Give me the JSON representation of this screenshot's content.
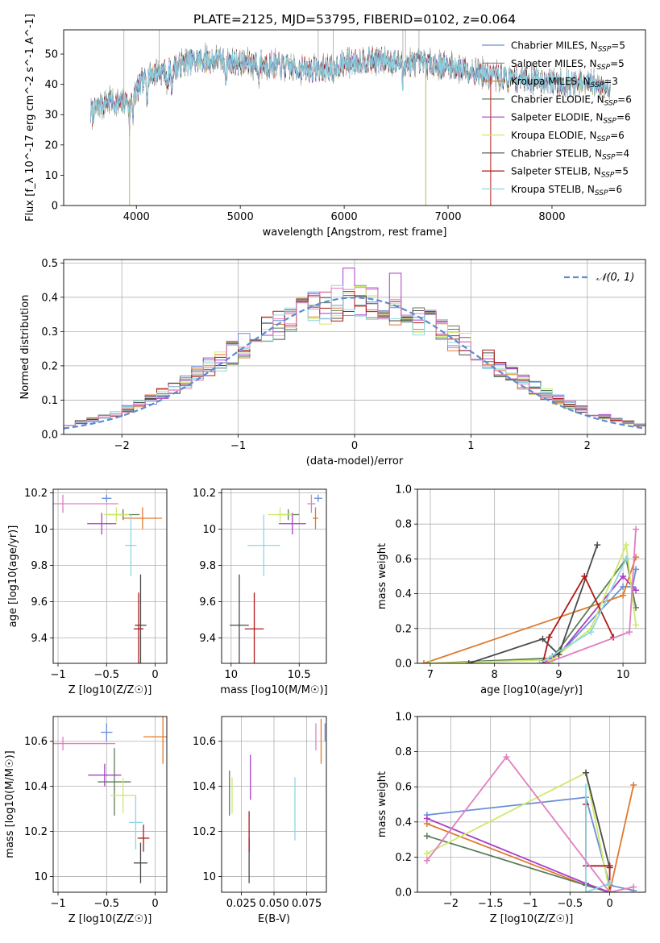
{
  "title": "PLATE=2125, MJD=53795, FIBERID=0102, z=0.064",
  "colors": {
    "c1": "#6a8fd8",
    "c2": "#e07a2e",
    "c3": "#5a7d5a",
    "c4": "#a63fc8",
    "c5": "#cfe96a",
    "c6": "#4a4a4a",
    "c7": "#b01818",
    "c8": "#8fd6e0",
    "c9": "#e07fc0",
    "gauss": "#5b8bd6"
  },
  "chart_data": [
    {
      "type": "line",
      "title": "PLATE=2125, MJD=53795, FIBERID=0102, z=0.064",
      "xlabel": "wavelength [Angstrom, rest frame]",
      "ylabel": "Flux [f_λ 10^-17 erg cm^-2 s^-1 A^-1]",
      "xlim": [
        3300,
        8900
      ],
      "ylim": [
        0,
        58
      ],
      "xticks": [
        4000,
        5000,
        6000,
        7000,
        8000
      ],
      "yticks": [
        0,
        10,
        20,
        30,
        40,
        50
      ],
      "grid": false,
      "legend_position": "top-right",
      "legend": [
        {
          "label": "Chabrier MILES, N",
          "sub": "SSP",
          "suffix": "=5",
          "color": "#6a8fd8"
        },
        {
          "label": "Salpeter MILES, N",
          "sub": "SSP",
          "suffix": "=5",
          "color": "#8a8a8a"
        },
        {
          "label": "Kroupa MILES, N",
          "sub": "SSP",
          "suffix": "=3",
          "color": "#e07a2e"
        },
        {
          "label": "Chabrier ELODIE, N",
          "sub": "SSP",
          "suffix": "=6",
          "color": "#5a7d5a"
        },
        {
          "label": "Salpeter ELODIE, N",
          "sub": "SSP",
          "suffix": "=6",
          "color": "#a63fc8"
        },
        {
          "label": "Kroupa ELODIE, N",
          "sub": "SSP",
          "suffix": "=6",
          "color": "#cfe96a"
        },
        {
          "label": "Chabrier STELIB, N",
          "sub": "SSP",
          "suffix": "=4",
          "color": "#4a4a4a"
        },
        {
          "label": "Salpeter STELIB, N",
          "sub": "SSP",
          "suffix": "=5",
          "color": "#b01818"
        },
        {
          "label": "Kroupa STELIB, N",
          "sub": "SSP",
          "suffix": "=6",
          "color": "#8fd6e0"
        }
      ],
      "continuum": [
        [
          3560,
          30
        ],
        [
          3650,
          33
        ],
        [
          3750,
          35
        ],
        [
          3850,
          33
        ],
        [
          3950,
          36
        ],
        [
          4050,
          40
        ],
        [
          4150,
          44
        ],
        [
          4300,
          44
        ],
        [
          4450,
          47
        ],
        [
          4600,
          48
        ],
        [
          4800,
          48
        ],
        [
          5000,
          47
        ],
        [
          5200,
          47
        ],
        [
          5400,
          46
        ],
        [
          5600,
          45
        ],
        [
          5800,
          45
        ],
        [
          6000,
          47
        ],
        [
          6200,
          48
        ],
        [
          6400,
          48
        ],
        [
          6560,
          47
        ],
        [
          6800,
          47
        ],
        [
          7000,
          46
        ],
        [
          7200,
          45
        ],
        [
          7400,
          43
        ],
        [
          7600,
          42
        ],
        [
          7800,
          42
        ],
        [
          8000,
          41
        ],
        [
          8200,
          40
        ],
        [
          8400,
          40
        ],
        [
          8560,
          39
        ]
      ],
      "spikes_up": [
        3880,
        4220,
        5750,
        5895,
        6565,
        6590,
        6720
      ],
      "spikes_down": [
        3934,
        6785,
        7410
      ]
    },
    {
      "type": "bar",
      "title": "",
      "xlabel": "(data-model)/error",
      "ylabel": "Normed distribution",
      "xlim": [
        -2.5,
        2.5
      ],
      "ylim": [
        0,
        0.51
      ],
      "xticks": [
        -2,
        -1,
        0,
        1,
        2
      ],
      "yticks": [
        0.0,
        0.1,
        0.2,
        0.3,
        0.4,
        0.5
      ],
      "grid": true,
      "legend_position": "top-right",
      "legend_label": "𝒩(0, 1)",
      "bin_width": 0.1,
      "x_start": -2.5,
      "n_series": 9
    },
    {
      "type": "scatter",
      "xlabel": "Z [log10(Z/Z☉)]",
      "ylabel": "age  [log10(age/yr)]",
      "xlim": [
        -1.05,
        0.12
      ],
      "ylim": [
        9.26,
        10.22
      ],
      "xticks": [
        -1.0,
        -0.5,
        0.0
      ],
      "yticks": [
        9.4,
        9.6,
        9.8,
        10.0,
        10.2
      ],
      "grid": true,
      "points": [
        {
          "color": "#6a8fd8",
          "x": -0.5,
          "y": 10.17,
          "xerr": 0.05,
          "yerr": 0.02
        },
        {
          "color": "#e07a2e",
          "x": -0.13,
          "y": 10.06,
          "xerr": 0.2,
          "yerr": 0.06
        },
        {
          "color": "#5a7d5a",
          "x": -0.33,
          "y": 10.08,
          "xerr": 0.17,
          "yerr": 0.03
        },
        {
          "color": "#a63fc8",
          "x": -0.55,
          "y": 10.03,
          "xerr": 0.15,
          "yerr": 0.06
        },
        {
          "color": "#cfe96a",
          "x": -0.4,
          "y": 10.08,
          "xerr": 0.13,
          "yerr": 0.04
        },
        {
          "color": "#4a4a4a",
          "x": -0.15,
          "y": 9.47,
          "xerr": 0.06,
          "yerr": 0.28
        },
        {
          "color": "#b01818",
          "x": -0.17,
          "y": 9.45,
          "xerr": 0.05,
          "yerr": 0.2
        },
        {
          "color": "#8fd6e0",
          "x": -0.25,
          "y": 9.91,
          "xerr": 0.06,
          "yerr": 0.17
        },
        {
          "color": "#e07fc0",
          "x": -0.95,
          "y": 10.14,
          "xerr": 0.57,
          "yerr": 0.05
        }
      ]
    },
    {
      "type": "scatter",
      "xlabel": "mass [log10(M/M☉)]",
      "ylabel": "",
      "xlim": [
        9.93,
        10.7
      ],
      "ylim": [
        9.26,
        10.22
      ],
      "xticks": [
        10.0,
        10.5
      ],
      "yticks": [
        9.4,
        9.6,
        9.8,
        10.0,
        10.2
      ],
      "grid": true,
      "points": [
        {
          "color": "#6a8fd8",
          "x": 10.64,
          "y": 10.17,
          "xerr": 0.03,
          "yerr": 0.02
        },
        {
          "color": "#e07a2e",
          "x": 10.62,
          "y": 10.06,
          "xerr": 0.02,
          "yerr": 0.06
        },
        {
          "color": "#5a7d5a",
          "x": 10.42,
          "y": 10.08,
          "xerr": 0.08,
          "yerr": 0.03
        },
        {
          "color": "#a63fc8",
          "x": 10.45,
          "y": 10.03,
          "xerr": 0.1,
          "yerr": 0.06
        },
        {
          "color": "#cfe96a",
          "x": 10.36,
          "y": 10.08,
          "xerr": 0.09,
          "yerr": 0.04
        },
        {
          "color": "#4a4a4a",
          "x": 10.06,
          "y": 9.47,
          "xerr": 0.07,
          "yerr": 0.28
        },
        {
          "color": "#b01818",
          "x": 10.17,
          "y": 9.45,
          "xerr": 0.07,
          "yerr": 0.2
        },
        {
          "color": "#8fd6e0",
          "x": 10.24,
          "y": 9.91,
          "xerr": 0.12,
          "yerr": 0.17
        },
        {
          "color": "#e07fc0",
          "x": 10.59,
          "y": 10.14,
          "xerr": 0.03,
          "yerr": 0.05
        }
      ]
    },
    {
      "type": "line",
      "xlabel": "age  [log10(age/yr)]",
      "ylabel": "mass weight",
      "xlim": [
        6.8,
        10.35
      ],
      "ylim": [
        0,
        1.0
      ],
      "xticks": [
        7,
        8,
        9,
        10
      ],
      "yticks": [
        0.0,
        0.2,
        0.4,
        0.6,
        0.8,
        1.0
      ],
      "grid": true,
      "series": [
        {
          "color": "#6a8fd8",
          "points": [
            [
              8.9,
              0.04
            ],
            [
              9.0,
              0.05
            ],
            [
              10.0,
              0.44
            ],
            [
              10.15,
              0.44
            ],
            [
              10.2,
              0.54
            ]
          ]
        },
        {
          "color": "#e07a2e",
          "points": [
            [
              6.9,
              0.0
            ],
            [
              10.0,
              0.39
            ],
            [
              10.2,
              0.61
            ]
          ]
        },
        {
          "color": "#5a7d5a",
          "points": [
            [
              7.0,
              0.0
            ],
            [
              8.9,
              0.03
            ],
            [
              10.05,
              0.6
            ],
            [
              10.2,
              0.32
            ]
          ]
        },
        {
          "color": "#a63fc8",
          "points": [
            [
              8.75,
              0.0
            ],
            [
              9.0,
              0.05
            ],
            [
              10.0,
              0.5
            ],
            [
              10.2,
              0.42
            ]
          ]
        },
        {
          "color": "#cfe96a",
          "points": [
            [
              7.0,
              0.0
            ],
            [
              8.9,
              0.02
            ],
            [
              9.5,
              0.2
            ],
            [
              10.05,
              0.68
            ],
            [
              10.2,
              0.22
            ]
          ]
        },
        {
          "color": "#4a4a4a",
          "points": [
            [
              7.6,
              0.0
            ],
            [
              8.75,
              0.14
            ],
            [
              9.0,
              0.05
            ],
            [
              9.6,
              0.68
            ]
          ]
        },
        {
          "color": "#b01818",
          "points": [
            [
              8.75,
              0.0
            ],
            [
              8.85,
              0.15
            ],
            [
              9.4,
              0.5
            ],
            [
              9.85,
              0.15
            ]
          ]
        },
        {
          "color": "#8fd6e0",
          "points": [
            [
              8.7,
              0.0
            ],
            [
              9.5,
              0.18
            ],
            [
              10.05,
              0.6
            ]
          ]
        },
        {
          "color": "#e07fc0",
          "points": [
            [
              8.8,
              0.0
            ],
            [
              10.1,
              0.18
            ],
            [
              10.2,
              0.77
            ]
          ]
        }
      ]
    },
    {
      "type": "scatter",
      "xlabel": "Z [log10(Z/Z☉)]",
      "ylabel": "mass [log10(M/M☉)]",
      "xlim": [
        -1.05,
        0.12
      ],
      "ylim": [
        9.93,
        10.71
      ],
      "xticks": [
        -1.0,
        -0.5,
        0.0
      ],
      "yticks": [
        10.0,
        10.2,
        10.4,
        10.6
      ],
      "grid": true,
      "points": [
        {
          "color": "#6a8fd8",
          "x": -0.5,
          "y": 10.64,
          "xerr": 0.06,
          "yerr": 0.04
        },
        {
          "color": "#e07a2e",
          "x": 0.08,
          "y": 10.62,
          "xerr": 0.2,
          "yerr": 0.12
        },
        {
          "color": "#5a7d5a",
          "x": -0.42,
          "y": 10.42,
          "xerr": 0.17,
          "yerr": 0.15
        },
        {
          "color": "#a63fc8",
          "x": -0.52,
          "y": 10.45,
          "xerr": 0.17,
          "yerr": 0.05
        },
        {
          "color": "#cfe96a",
          "x": -0.33,
          "y": 10.36,
          "xerr": 0.13,
          "yerr": 0.08
        },
        {
          "color": "#4a4a4a",
          "x": -0.15,
          "y": 10.06,
          "xerr": 0.07,
          "yerr": 0.09
        },
        {
          "color": "#b01818",
          "x": -0.12,
          "y": 10.17,
          "xerr": 0.06,
          "yerr": 0.06
        },
        {
          "color": "#8fd6e0",
          "x": -0.2,
          "y": 10.24,
          "xerr": 0.07,
          "yerr": 0.12
        },
        {
          "color": "#e07fc0",
          "x": -0.95,
          "y": 10.59,
          "xerr": 0.54,
          "yerr": 0.03
        }
      ]
    },
    {
      "type": "scatter",
      "xlabel": "E(B-V)",
      "ylabel": "",
      "xlim": [
        0.01,
        0.09
      ],
      "ylim": [
        9.93,
        10.71
      ],
      "xticks": [
        0.025,
        0.05,
        0.075
      ],
      "xtick_labels": [
        "0.025",
        "0.050",
        "0.075"
      ],
      "yticks": [
        10.0,
        10.2,
        10.4,
        10.6
      ],
      "grid": true,
      "points": [
        {
          "color": "#6a8fd8",
          "x": 0.089,
          "y": 10.64,
          "xerr": 0.0,
          "yerr": 0.04
        },
        {
          "color": "#e07a2e",
          "x": 0.086,
          "y": 10.6,
          "xerr": 0.0,
          "yerr": 0.1
        },
        {
          "color": "#5a7d5a",
          "x": 0.016,
          "y": 10.37,
          "xerr": 0.0,
          "yerr": 0.1
        },
        {
          "color": "#a63fc8",
          "x": 0.032,
          "y": 10.44,
          "xerr": 0.0,
          "yerr": 0.1
        },
        {
          "color": "#cfe96a",
          "x": 0.018,
          "y": 10.36,
          "xerr": 0.0,
          "yerr": 0.08
        },
        {
          "color": "#4a4a4a",
          "x": 0.031,
          "y": 10.07,
          "xerr": 0.0,
          "yerr": 0.1
        },
        {
          "color": "#b01818",
          "x": 0.031,
          "y": 10.2,
          "xerr": 0.0,
          "yerr": 0.09
        },
        {
          "color": "#8fd6e0",
          "x": 0.066,
          "y": 10.3,
          "xerr": 0.0,
          "yerr": 0.14
        },
        {
          "color": "#e07fc0",
          "x": 0.082,
          "y": 10.62,
          "xerr": 0.0,
          "yerr": 0.06
        }
      ]
    },
    {
      "type": "line",
      "xlabel": "Z [log10(Z/Z☉)]",
      "ylabel": "mass weight",
      "xlim": [
        -2.42,
        0.45
      ],
      "ylim": [
        0,
        1.0
      ],
      "xticks": [
        -2.0,
        -1.5,
        -1.0,
        -0.5,
        0.0
      ],
      "yticks": [
        0.0,
        0.2,
        0.4,
        0.6,
        0.8,
        1.0
      ],
      "grid": true,
      "series": [
        {
          "color": "#6a8fd8",
          "points": [
            [
              -2.3,
              0.44
            ],
            [
              -0.3,
              0.54
            ],
            [
              0.0,
              0.04
            ],
            [
              0.3,
              0.01
            ]
          ]
        },
        {
          "color": "#e07a2e",
          "points": [
            [
              -2.3,
              0.39
            ],
            [
              -0.3,
              0.04
            ],
            [
              0.0,
              0.0
            ],
            [
              0.3,
              0.61
            ]
          ]
        },
        {
          "color": "#5a7d5a",
          "points": [
            [
              -2.3,
              0.32
            ],
            [
              -0.3,
              0.04
            ],
            [
              0.0,
              0.0
            ]
          ]
        },
        {
          "color": "#a63fc8",
          "points": [
            [
              -2.3,
              0.42
            ],
            [
              -0.3,
              0.05
            ],
            [
              0.0,
              0.0
            ]
          ]
        },
        {
          "color": "#cfe96a",
          "points": [
            [
              -2.3,
              0.22
            ],
            [
              -0.3,
              0.68
            ],
            [
              0.0,
              0.0
            ]
          ]
        },
        {
          "color": "#4a4a4a",
          "points": [
            [
              -0.3,
              0.68
            ],
            [
              0.0,
              0.14
            ]
          ]
        },
        {
          "color": "#b01818",
          "points": [
            [
              -0.3,
              0.5
            ],
            [
              -0.3,
              0.15
            ],
            [
              0.0,
              0.15
            ],
            [
              0.0,
              0.0
            ]
          ]
        },
        {
          "color": "#8fd6e0",
          "points": [
            [
              -0.3,
              0.6
            ],
            [
              -0.3,
              0.0
            ],
            [
              0.0,
              0.05
            ]
          ]
        },
        {
          "color": "#e07fc0",
          "points": [
            [
              -2.3,
              0.18
            ],
            [
              -1.3,
              0.77
            ],
            [
              0.0,
              0.0
            ],
            [
              0.3,
              0.03
            ]
          ]
        }
      ]
    }
  ]
}
